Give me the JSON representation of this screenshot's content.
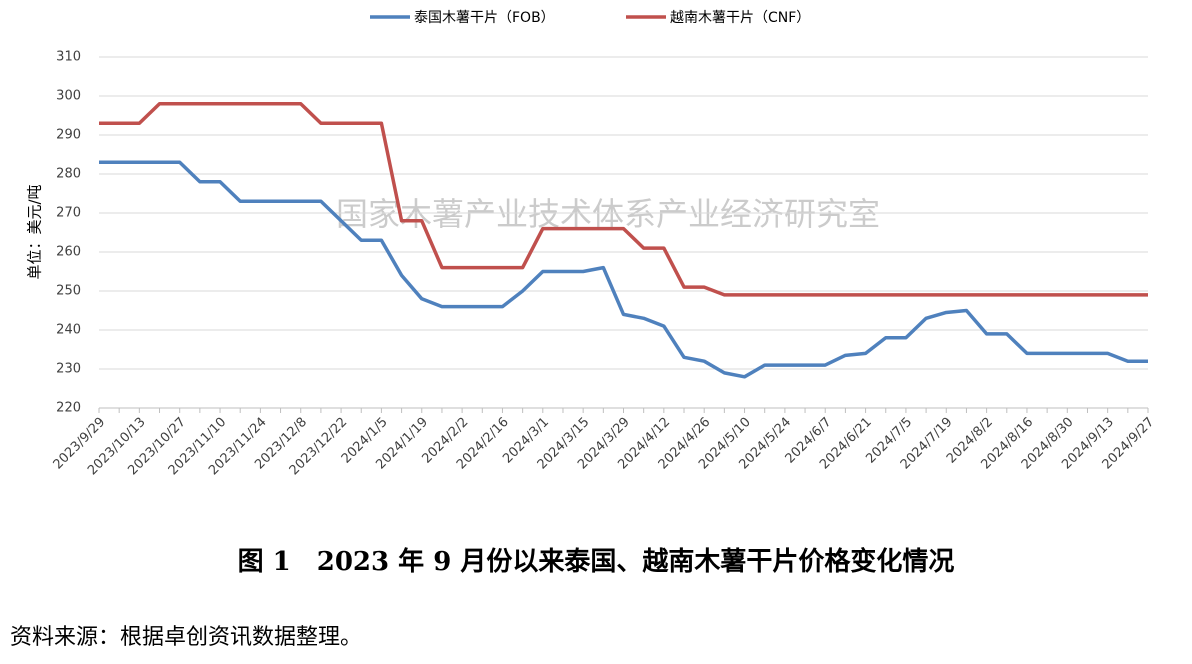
{
  "chart_data": {
    "type": "line",
    "ylabel": "单位：美元/吨",
    "watermark": "国家木薯产业技术体系产业经济研究室",
    "caption": "图 1　2023 年 9 月份以来泰国、越南木薯干片价格变化情况",
    "source": "资料来源：根据卓创资讯数据整理。",
    "categories": [
      "2023/9/29",
      null,
      "2023/10/13",
      null,
      "2023/10/27",
      null,
      "2023/11/10",
      null,
      "2023/11/24",
      null,
      "2023/12/8",
      null,
      "2023/12/22",
      null,
      "2024/1/5",
      null,
      "2024/1/19",
      null,
      "2024/2/2",
      null,
      "2024/2/16",
      null,
      "2024/3/1",
      null,
      "2024/3/15",
      null,
      "2024/3/29",
      null,
      "2024/4/12",
      null,
      "2024/4/26",
      null,
      "2024/5/10",
      null,
      "2024/5/24",
      null,
      "2024/6/7",
      null,
      "2024/6/21",
      null,
      "2024/7/5",
      null,
      "2024/7/19",
      null,
      "2024/8/2",
      null,
      "2024/8/16",
      null,
      "2024/8/30",
      null,
      "2024/9/13",
      null,
      "2024/9/27"
    ],
    "series": [
      {
        "name": "泰国木薯干片（FOB）",
        "color": "#4f81bd",
        "values": [
          283,
          283,
          283,
          283,
          283,
          278,
          278,
          273,
          273,
          273,
          273,
          273,
          268,
          263,
          263,
          254,
          248,
          246,
          246,
          246,
          246,
          250,
          255,
          255,
          255,
          256,
          244,
          243,
          241,
          233,
          232,
          229,
          228,
          231,
          231,
          231,
          231,
          233.5,
          234,
          238,
          238,
          243,
          244.5,
          245,
          239,
          239,
          234,
          234,
          234,
          234,
          234,
          232,
          232
        ]
      },
      {
        "name": "越南木薯干片（CNF）",
        "color": "#c0504d",
        "values": [
          293,
          293,
          293,
          298,
          298,
          298,
          298,
          298,
          298,
          298,
          298,
          293,
          293,
          293,
          293,
          268,
          268,
          256,
          256,
          256,
          256,
          256,
          266,
          266,
          266,
          266,
          266,
          261,
          261,
          251,
          251,
          249,
          249,
          249,
          249,
          249,
          249,
          249,
          249,
          249,
          249,
          249,
          249,
          249,
          249,
          249,
          249,
          249,
          249,
          249,
          249,
          249,
          249
        ]
      }
    ],
    "ylim": [
      220,
      310
    ],
    "yticks": [
      220,
      230,
      240,
      250,
      260,
      270,
      280,
      290,
      300,
      310
    ],
    "grid": true,
    "legend": "top"
  }
}
